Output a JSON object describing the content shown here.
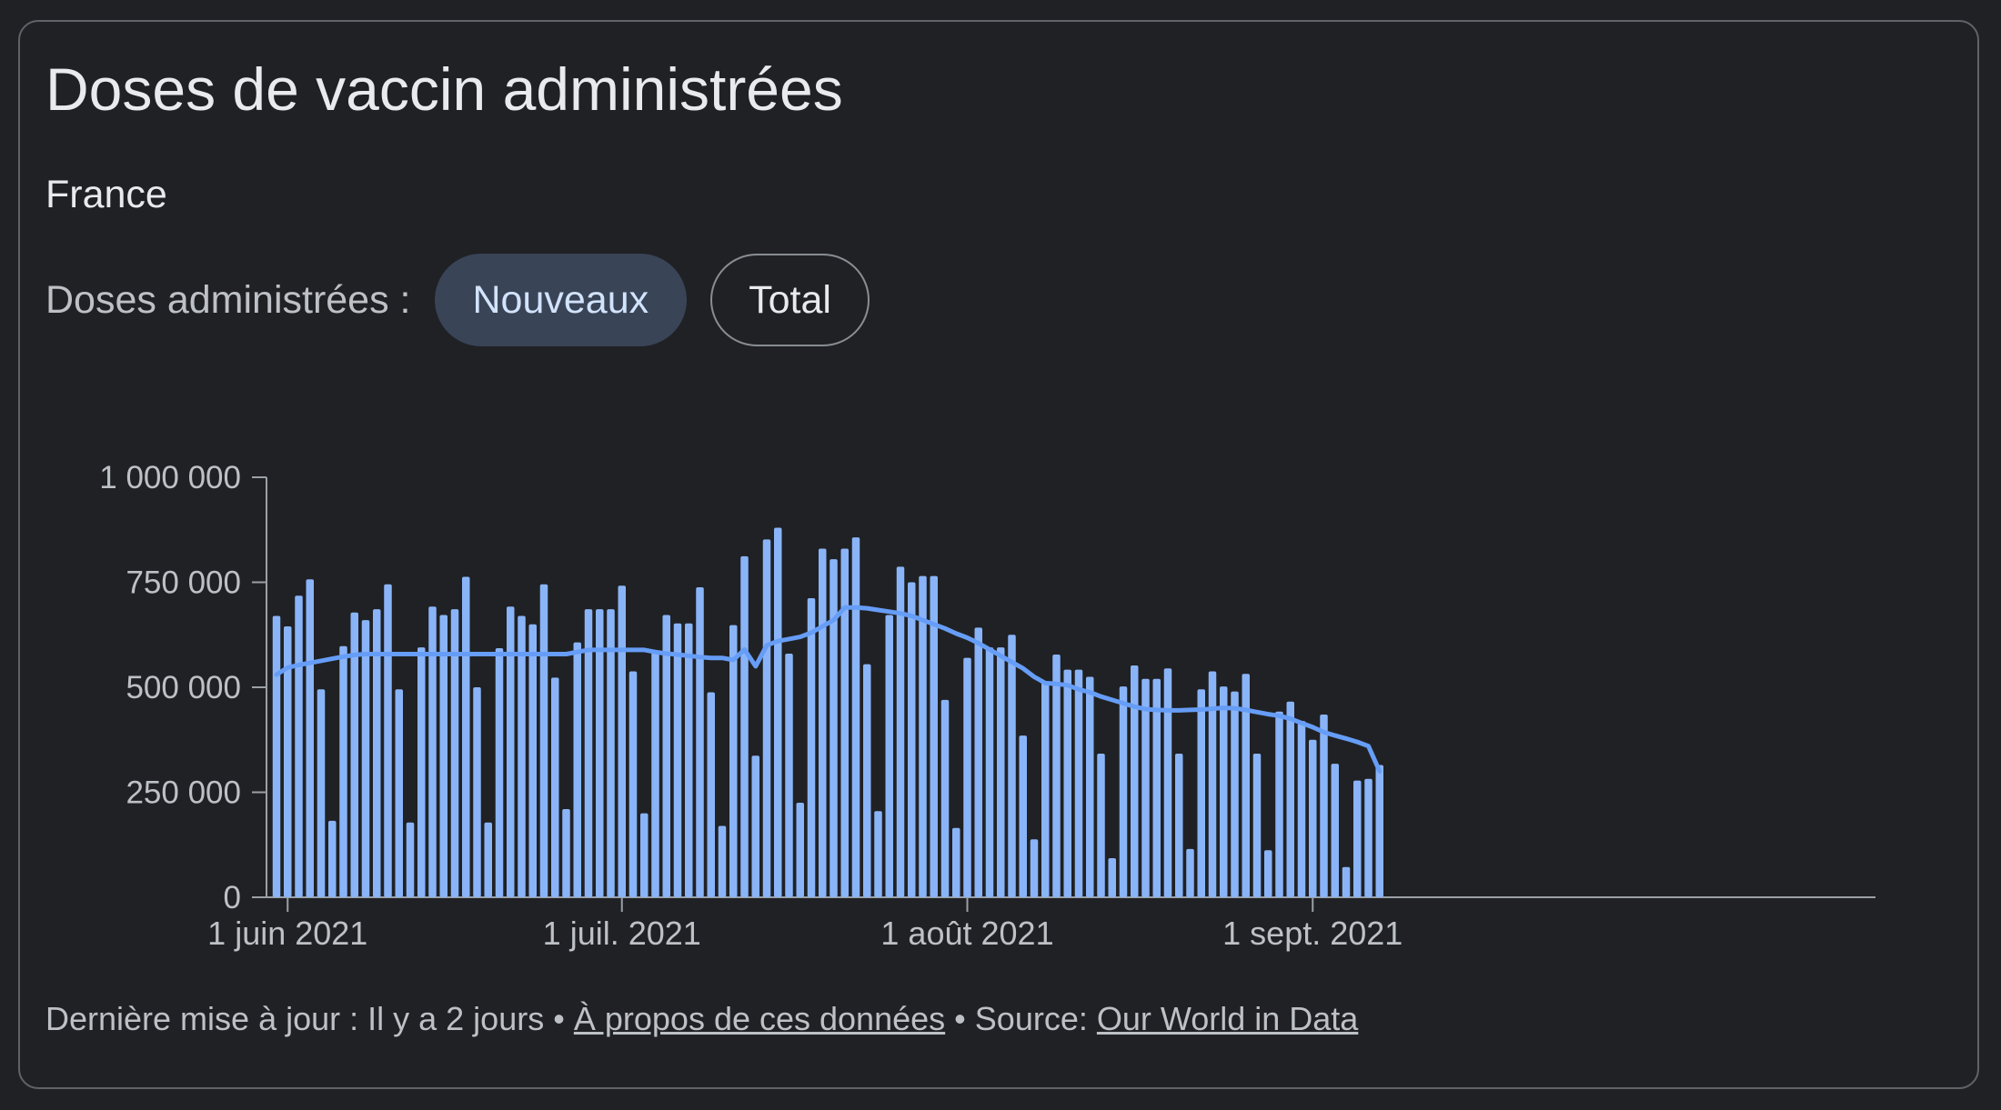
{
  "card": {
    "title": "Doses de vaccin administrées",
    "location": "France"
  },
  "toggle": {
    "label": "Doses administrées :",
    "options": [
      "Nouveaux",
      "Total"
    ],
    "selected": "Nouveaux"
  },
  "footer": {
    "updated": "Dernière mise à jour : Il y a 2 jours",
    "separator": "•",
    "about_link": "À propos de ces données",
    "source_label": "Source:",
    "source_link": "Our World in Data"
  },
  "colors": {
    "background": "#202124",
    "bar": "#8ab4f8",
    "line": "#669df6",
    "axis": "#9aa0a6",
    "chip_active_bg": "#394457"
  },
  "chart_data": {
    "type": "bar",
    "title": "Doses de vaccin administrées",
    "subtitle": "France",
    "ylim": [
      0,
      1000000
    ],
    "yticks": [
      0,
      250000,
      500000,
      750000,
      1000000
    ],
    "ytick_labels": [
      "0",
      "250 000",
      "500 000",
      "750 000",
      "1 000 000"
    ],
    "xticks": [
      {
        "date": "2021-06-01",
        "label": "1 juin 2021"
      },
      {
        "date": "2021-07-01",
        "label": "1 juil. 2021"
      },
      {
        "date": "2021-08-01",
        "label": "1 août 2021"
      },
      {
        "date": "2021-09-01",
        "label": "1 sept. 2021"
      }
    ],
    "start_date": "2021-05-31",
    "grid": false,
    "series": [
      {
        "name": "Nouveaux",
        "type": "bar",
        "values": [
          670000,
          645000,
          718000,
          757000,
          495000,
          182000,
          598000,
          678000,
          660000,
          686000,
          745000,
          495000,
          178000,
          595000,
          692000,
          672000,
          686000,
          763000,
          500000,
          178000,
          593000,
          692000,
          670000,
          650000,
          745000,
          523000,
          210000,
          607000,
          686000,
          686000,
          686000,
          742000,
          538000,
          200000,
          583000,
          672000,
          652000,
          652000,
          738000,
          488000,
          170000,
          648000,
          812000,
          337000,
          852000,
          880000,
          580000,
          225000,
          712000,
          830000,
          805000,
          830000,
          857000,
          555000,
          205000,
          672000,
          787000,
          750000,
          765000,
          765000,
          470000,
          165000,
          570000,
          642000,
          595000,
          595000,
          625000,
          385000,
          138000,
          512000,
          578000,
          542000,
          542000,
          525000,
          342000,
          93000,
          502000,
          552000,
          520000,
          520000,
          545000,
          342000,
          115000,
          495000,
          538000,
          502000,
          490000,
          532000,
          342000,
          112000,
          442000,
          466000,
          420000,
          375000,
          435000,
          318000,
          72000,
          278000,
          282000,
          315000
        ]
      },
      {
        "name": "Moyenne mobile",
        "type": "line",
        "values": [
          530000,
          547000,
          553000,
          558000,
          563000,
          568000,
          573000,
          577000,
          579000,
          579000,
          579000,
          579000,
          579000,
          579000,
          579000,
          579000,
          579000,
          579000,
          579000,
          579000,
          579000,
          579000,
          579000,
          579000,
          579000,
          579000,
          579000,
          584000,
          589000,
          589000,
          589000,
          589000,
          589000,
          589000,
          584000,
          580000,
          578000,
          575000,
          572000,
          570000,
          570000,
          565000,
          590000,
          550000,
          600000,
          610000,
          615000,
          620000,
          630000,
          645000,
          660000,
          690000,
          690000,
          688000,
          684000,
          680000,
          676000,
          670000,
          660000,
          650000,
          640000,
          628000,
          618000,
          605000,
          590000,
          575000,
          560000,
          545000,
          525000,
          510000,
          508000,
          505000,
          495000,
          488000,
          478000,
          470000,
          462000,
          454000,
          448000,
          446000,
          445000,
          445000,
          446000,
          447000,
          449000,
          451000,
          450000,
          446000,
          441000,
          436000,
          432000,
          425000,
          415000,
          405000,
          393000,
          385000,
          378000,
          370000,
          360000,
          300000
        ]
      }
    ]
  }
}
